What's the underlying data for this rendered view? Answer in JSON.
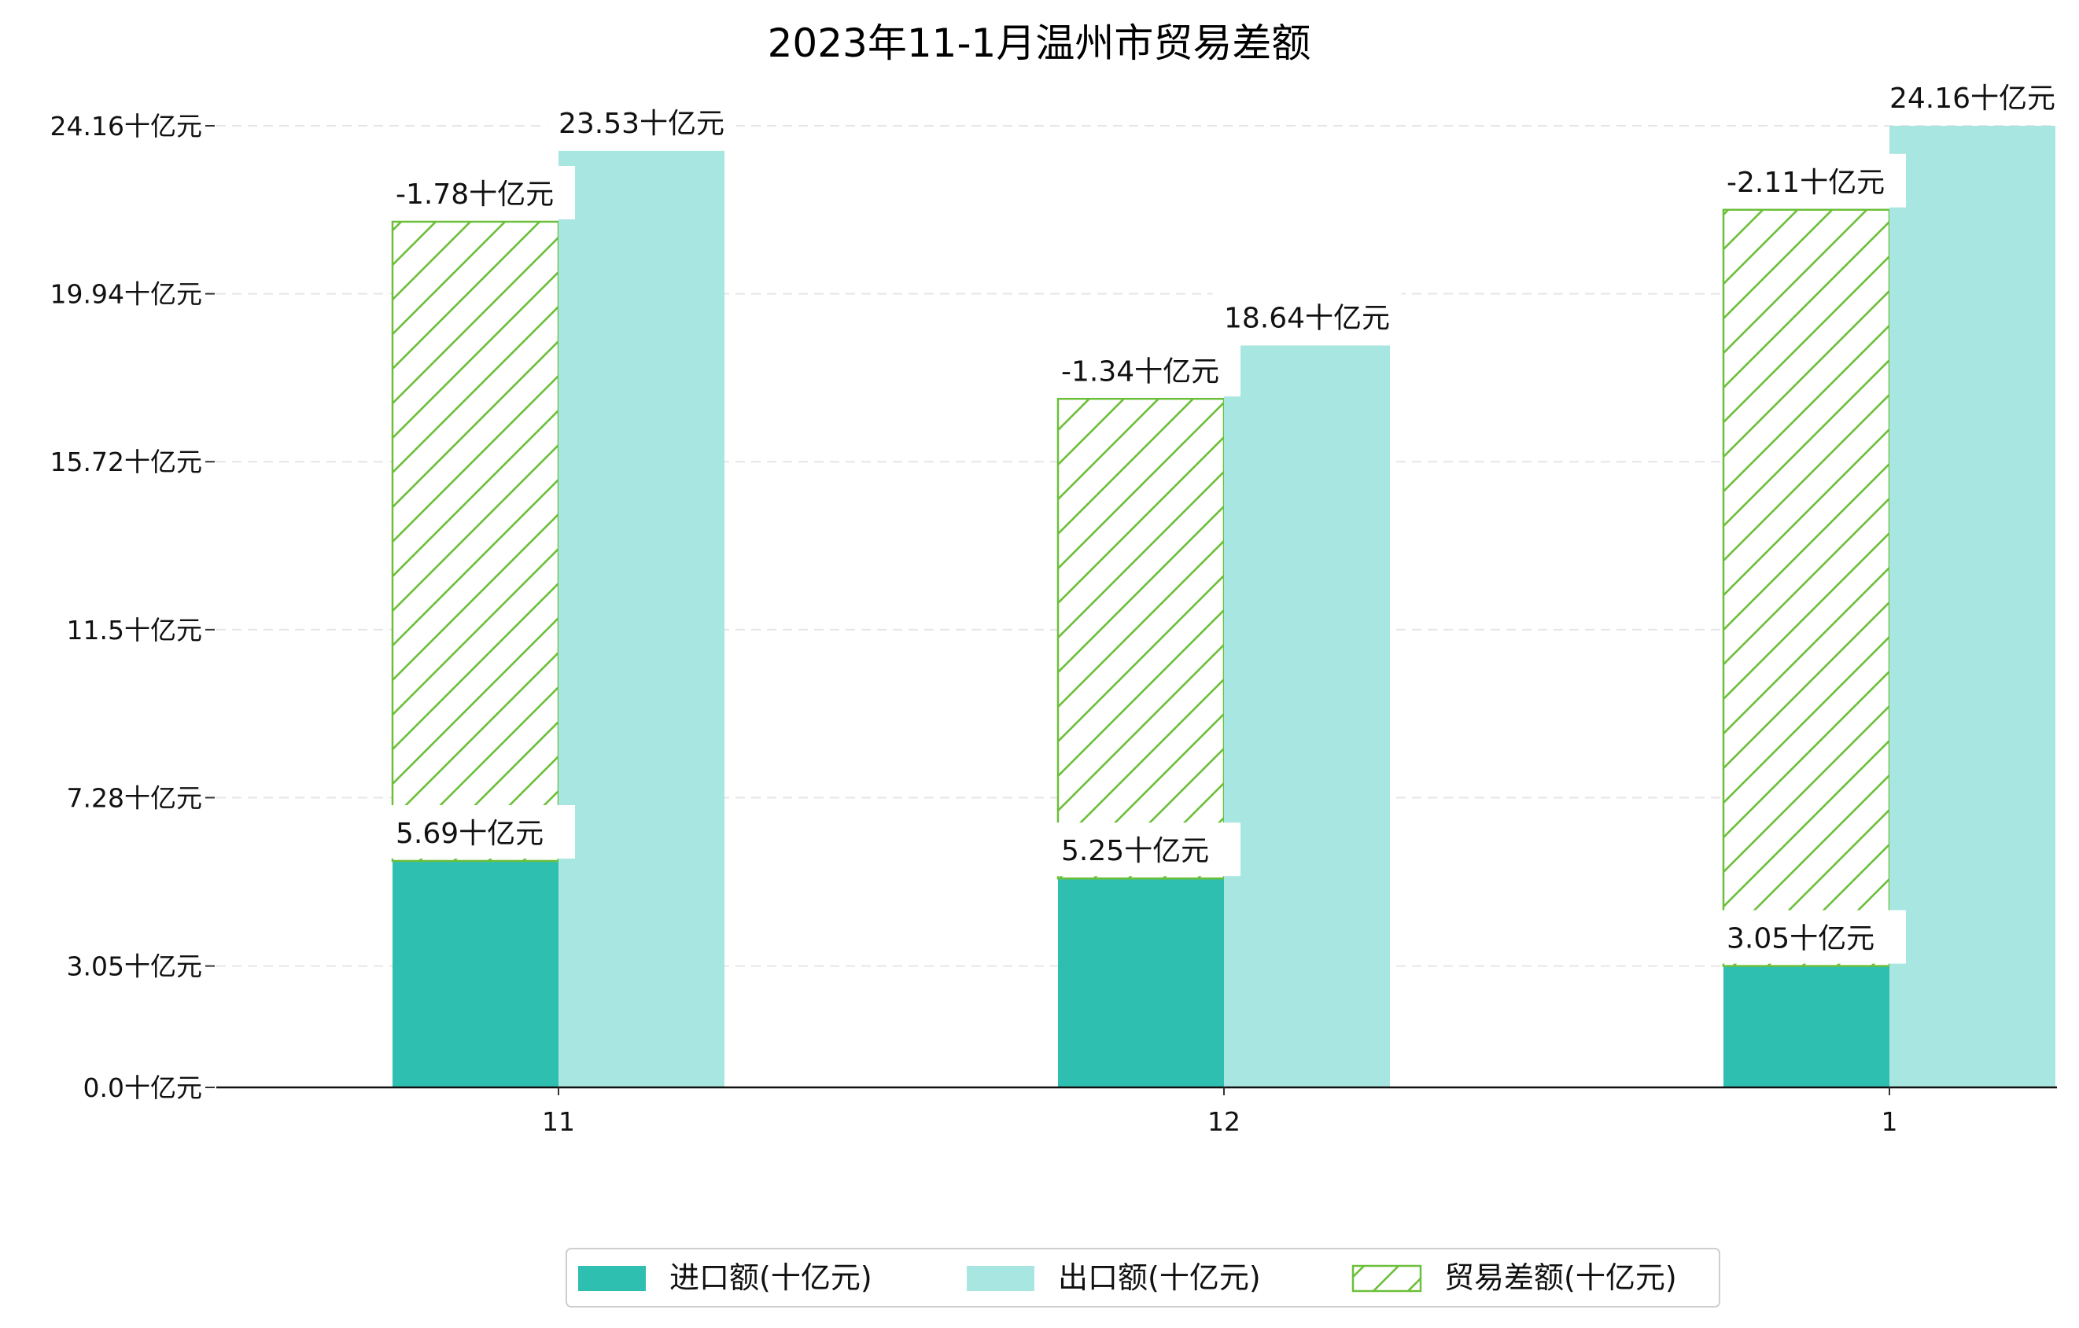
{
  "chart_data": {
    "type": "bar",
    "title": "2023年11-1月温州市贸易差额",
    "categories": [
      "11",
      "12",
      "1"
    ],
    "series": [
      {
        "name": "进口额(十亿元)",
        "values": [
          5.69,
          5.25,
          3.05
        ],
        "color": "#2ebfb0",
        "labels": [
          "5.69十亿元",
          "5.25十亿元",
          "3.05十亿元"
        ]
      },
      {
        "name": "出口额(十亿元)",
        "values": [
          23.53,
          18.64,
          24.16
        ],
        "color": "#a8e6e1",
        "labels": [
          "23.53十亿元",
          "18.64十亿元",
          "24.16十亿元"
        ]
      },
      {
        "name": "贸易差额(十亿元)",
        "values": [
          -1.78,
          -1.34,
          -2.11
        ],
        "color": "#6cbf3a",
        "pattern": "hatch",
        "labels": [
          "-1.78十亿元",
          "-1.34十亿元",
          "-2.11十亿元"
        ]
      }
    ],
    "yticks": [
      "0.0十亿元",
      "3.05十亿元",
      "7.28十亿元",
      "11.5十亿元",
      "15.72十亿元",
      "19.94十亿元",
      "24.16十亿元"
    ],
    "ytick_values": [
      0.0,
      3.05,
      7.28,
      11.5,
      15.72,
      19.94,
      24.16
    ],
    "ylim": [
      0,
      24.16
    ],
    "grid": true,
    "legend_position": "bottom-center"
  }
}
